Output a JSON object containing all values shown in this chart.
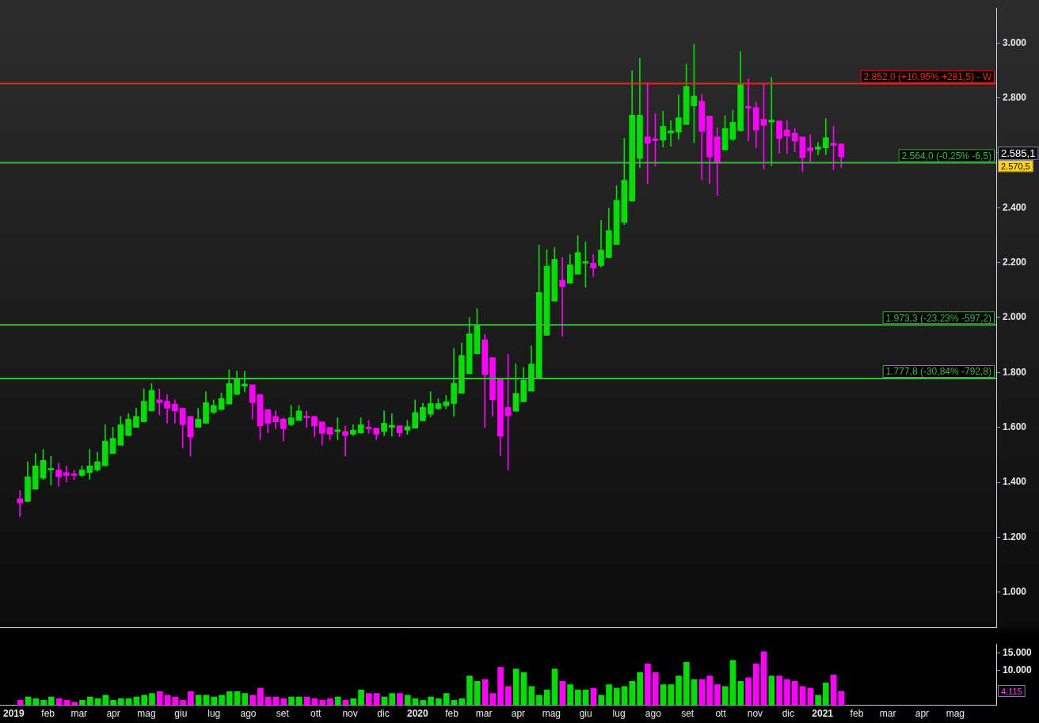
{
  "chart_data": [
    {
      "type": "candlestick",
      "x": [
        "2019-01-07",
        "2019-01-14",
        "2019-01-21",
        "2019-01-28",
        "2019-02-04",
        "2019-02-11",
        "2019-02-18",
        "2019-02-25",
        "2019-03-04",
        "2019-03-11",
        "2019-03-18",
        "2019-03-25",
        "2019-04-01",
        "2019-04-08",
        "2019-04-15",
        "2019-04-22",
        "2019-04-29",
        "2019-05-06",
        "2019-05-13",
        "2019-05-20",
        "2019-05-27",
        "2019-06-03",
        "2019-06-10",
        "2019-06-17",
        "2019-06-24",
        "2019-07-01",
        "2019-07-08",
        "2019-07-15",
        "2019-07-22",
        "2019-07-29",
        "2019-08-05",
        "2019-08-12",
        "2019-08-19",
        "2019-08-26",
        "2019-09-02",
        "2019-09-09",
        "2019-09-16",
        "2019-09-23",
        "2019-09-30",
        "2019-10-07",
        "2019-10-14",
        "2019-10-21",
        "2019-10-28",
        "2019-11-04",
        "2019-11-11",
        "2019-11-18",
        "2019-11-25",
        "2019-12-02",
        "2019-12-09",
        "2019-12-16",
        "2019-12-23",
        "2019-12-30",
        "2020-01-06",
        "2020-01-13",
        "2020-01-20",
        "2020-01-27",
        "2020-02-03",
        "2020-02-10",
        "2020-02-17",
        "2020-02-24",
        "2020-03-02",
        "2020-03-09",
        "2020-03-16",
        "2020-03-23",
        "2020-03-30",
        "2020-04-06",
        "2020-04-13",
        "2020-04-20",
        "2020-04-27",
        "2020-05-04",
        "2020-05-11",
        "2020-05-18",
        "2020-05-25",
        "2020-06-01",
        "2020-06-08",
        "2020-06-15",
        "2020-06-22",
        "2020-06-29",
        "2020-07-06",
        "2020-07-13",
        "2020-07-20",
        "2020-07-27",
        "2020-08-03",
        "2020-08-10",
        "2020-08-17",
        "2020-08-24",
        "2020-08-31",
        "2020-09-07",
        "2020-09-14",
        "2020-09-21",
        "2020-09-28",
        "2020-10-05",
        "2020-10-12",
        "2020-10-19",
        "2020-10-26",
        "2020-11-02",
        "2020-11-09",
        "2020-11-16",
        "2020-11-23",
        "2020-11-30",
        "2020-12-07",
        "2020-12-14",
        "2020-12-21",
        "2020-12-28",
        "2021-01-04",
        "2021-01-11",
        "2021-01-18"
      ],
      "ohlc": [
        [
          1340,
          1370,
          1275,
          1325
        ],
        [
          1330,
          1475,
          1330,
          1420
        ],
        [
          1375,
          1505,
          1375,
          1460
        ],
        [
          1415,
          1520,
          1410,
          1480
        ],
        [
          1445,
          1495,
          1390,
          1448
        ],
        [
          1445,
          1470,
          1385,
          1420
        ],
        [
          1435,
          1460,
          1400,
          1425
        ],
        [
          1430,
          1445,
          1410,
          1425
        ],
        [
          1425,
          1460,
          1420,
          1445
        ],
        [
          1435,
          1520,
          1410,
          1460
        ],
        [
          1445,
          1510,
          1440,
          1475
        ],
        [
          1460,
          1610,
          1460,
          1550
        ],
        [
          1505,
          1600,
          1505,
          1560
        ],
        [
          1535,
          1640,
          1535,
          1610
        ],
        [
          1570,
          1650,
          1570,
          1630
        ],
        [
          1600,
          1670,
          1600,
          1640
        ],
        [
          1620,
          1740,
          1620,
          1695
        ],
        [
          1660,
          1760,
          1660,
          1735
        ],
        [
          1700,
          1740,
          1645,
          1690
        ],
        [
          1695,
          1720,
          1615,
          1670
        ],
        [
          1685,
          1700,
          1615,
          1660
        ],
        [
          1670,
          1670,
          1525,
          1610
        ],
        [
          1640,
          1640,
          1495,
          1565
        ],
        [
          1600,
          1670,
          1600,
          1630
        ],
        [
          1615,
          1730,
          1615,
          1690
        ],
        [
          1655,
          1700,
          1650,
          1680
        ],
        [
          1665,
          1725,
          1665,
          1705
        ],
        [
          1685,
          1810,
          1685,
          1760
        ],
        [
          1720,
          1805,
          1720,
          1775
        ],
        [
          1750,
          1805,
          1730,
          1758
        ],
        [
          1755,
          1755,
          1630,
          1690
        ],
        [
          1720,
          1720,
          1555,
          1605
        ],
        [
          1665,
          1665,
          1580,
          1615
        ],
        [
          1640,
          1660,
          1595,
          1620
        ],
        [
          1630,
          1635,
          1550,
          1595
        ],
        [
          1610,
          1680,
          1605,
          1635
        ],
        [
          1625,
          1680,
          1625,
          1660
        ],
        [
          1640,
          1660,
          1600,
          1635
        ],
        [
          1640,
          1640,
          1565,
          1605
        ],
        [
          1620,
          1620,
          1535,
          1578
        ],
        [
          1600,
          1600,
          1555,
          1575
        ],
        [
          1585,
          1635,
          1555,
          1588
        ],
        [
          1585,
          1605,
          1495,
          1570
        ],
        [
          1575,
          1610,
          1570,
          1590
        ],
        [
          1580,
          1635,
          1578,
          1610
        ],
        [
          1598,
          1625,
          1578,
          1595
        ],
        [
          1597,
          1597,
          1555,
          1575
        ],
        [
          1585,
          1660,
          1570,
          1615
        ],
        [
          1600,
          1650,
          1568,
          1608
        ],
        [
          1606,
          1606,
          1565,
          1580
        ],
        [
          1590,
          1625,
          1574,
          1603
        ],
        [
          1597,
          1700,
          1597,
          1654
        ],
        [
          1624,
          1688,
          1624,
          1673
        ],
        [
          1648,
          1730,
          1638,
          1687
        ],
        [
          1668,
          1704,
          1665,
          1687
        ],
        [
          1679,
          1716,
          1668,
          1693
        ],
        [
          1687,
          1888,
          1641,
          1761
        ],
        [
          1724,
          1907,
          1724,
          1862
        ],
        [
          1795,
          2000,
          1795,
          1941
        ],
        [
          1868,
          2032,
          1868,
          1972
        ],
        [
          1919,
          1938,
          1599,
          1792
        ],
        [
          1854,
          1854,
          1641,
          1701
        ],
        [
          1775,
          1775,
          1497,
          1568
        ],
        [
          1673,
          1866,
          1444,
          1642
        ],
        [
          1659,
          1832,
          1659,
          1724
        ],
        [
          1693,
          1818,
          1693,
          1772
        ],
        [
          1732,
          1897,
          1732,
          1831
        ],
        [
          1782,
          2264,
          1778,
          2091
        ],
        [
          1935,
          2247,
          1935,
          2187
        ],
        [
          2060,
          2255,
          2060,
          2212
        ],
        [
          2136,
          2219,
          1932,
          2113
        ],
        [
          2125,
          2230,
          2125,
          2192
        ],
        [
          2158,
          2298,
          2158,
          2237
        ],
        [
          2198,
          2275,
          2110,
          2200
        ],
        [
          2198,
          2230,
          2149,
          2181
        ],
        [
          2189,
          2354,
          2184,
          2246
        ],
        [
          2218,
          2398,
          2218,
          2317
        ],
        [
          2266,
          2480,
          2266,
          2427
        ],
        [
          2347,
          2652,
          2338,
          2500
        ],
        [
          2424,
          2898,
          2424,
          2737
        ],
        [
          2579,
          2944,
          2547,
          2737
        ],
        [
          2658,
          2856,
          2488,
          2635
        ],
        [
          2647,
          2743,
          2552,
          2645
        ],
        [
          2646,
          2752,
          2621,
          2697
        ],
        [
          2672,
          2717,
          2624,
          2680
        ],
        [
          2675,
          2811,
          2649,
          2728
        ],
        [
          2703,
          2923,
          2703,
          2841
        ],
        [
          2771,
          2995,
          2637,
          2807
        ],
        [
          2788,
          2814,
          2502,
          2678
        ],
        [
          2734,
          2734,
          2488,
          2585
        ],
        [
          2658,
          2692,
          2445,
          2565
        ],
        [
          2610,
          2735,
          2610,
          2689
        ],
        [
          2649,
          2755,
          2644,
          2711
        ],
        [
          2680,
          2969,
          2680,
          2849
        ],
        [
          2765,
          2869,
          2643,
          2763
        ],
        [
          2765,
          2785,
          2617,
          2683
        ],
        [
          2722,
          2850,
          2541,
          2700
        ],
        [
          2712,
          2875,
          2553,
          2719
        ],
        [
          2716,
          2716,
          2598,
          2652
        ],
        [
          2683,
          2717,
          2598,
          2661
        ],
        [
          2672,
          2689,
          2604,
          2643
        ],
        [
          2658,
          2658,
          2533,
          2582
        ],
        [
          2618,
          2666,
          2565,
          2607
        ],
        [
          2613,
          2638,
          2593,
          2621
        ],
        [
          2618,
          2725,
          2593,
          2655
        ],
        [
          2635,
          2697,
          2538,
          2627
        ],
        [
          2632,
          2632,
          2547,
          2585
        ]
      ],
      "colors": [
        "#ff00ff",
        "#00e000",
        "#00e000",
        "#00e000",
        "#00e000",
        "#ff00ff",
        "#ff00ff",
        "#ff00ff",
        "#00e000",
        "#00e000",
        "#00e000",
        "#00e000",
        "#00e000",
        "#00e000",
        "#00e000",
        "#00e000",
        "#00e000",
        "#00e000",
        "#ff00ff",
        "#ff00ff",
        "#ff00ff",
        "#ff00ff",
        "#ff00ff",
        "#00e000",
        "#00e000",
        "#00e000",
        "#00e000",
        "#00e000",
        "#00e000",
        "#00e000",
        "#ff00ff",
        "#ff00ff",
        "#ff00ff",
        "#ff00ff",
        "#ff00ff",
        "#00e000",
        "#00e000",
        "#ff00ff",
        "#ff00ff",
        "#ff00ff",
        "#ff00ff",
        "#00e000",
        "#ff00ff",
        "#00e000",
        "#00e000",
        "#ff00ff",
        "#ff00ff",
        "#00e000",
        "#00e000",
        "#ff00ff",
        "#00e000",
        "#00e000",
        "#00e000",
        "#00e000",
        "#00e000",
        "#00e000",
        "#00e000",
        "#00e000",
        "#00e000",
        "#00e000",
        "#ff00ff",
        "#ff00ff",
        "#ff00ff",
        "#ff00ff",
        "#00e000",
        "#00e000",
        "#00e000",
        "#00e000",
        "#00e000",
        "#00e000",
        "#ff00ff",
        "#00e000",
        "#00e000",
        "#00e000",
        "#ff00ff",
        "#00e000",
        "#00e000",
        "#00e000",
        "#00e000",
        "#00e000",
        "#00e000",
        "#ff00ff",
        "#ff00ff",
        "#00e000",
        "#00e000",
        "#00e000",
        "#00e000",
        "#00e000",
        "#ff00ff",
        "#ff00ff",
        "#ff00ff",
        "#00e000",
        "#00e000",
        "#00e000",
        "#ff00ff",
        "#ff00ff",
        "#ff00ff",
        "#00e000",
        "#ff00ff",
        "#ff00ff",
        "#ff00ff",
        "#ff00ff",
        "#ff00ff",
        "#00e000",
        "#00e000",
        "#ff00ff",
        "#ff00ff"
      ],
      "xlim": [
        "2018-12-20",
        "2021-06-07"
      ],
      "ylim": [
        870,
        3127
      ],
      "yticks": [
        {
          "value": 1000,
          "label": "1.000"
        },
        {
          "value": 1200,
          "label": "1.200"
        },
        {
          "value": 1400,
          "label": "1.400"
        },
        {
          "value": 1600,
          "label": "1.600"
        },
        {
          "value": 1800,
          "label": "1.800"
        },
        {
          "value": 2000,
          "label": "2.000"
        },
        {
          "value": 2200,
          "label": "2.200"
        },
        {
          "value": 2400,
          "label": "2.400"
        },
        {
          "value": 2600,
          "label": null
        },
        {
          "value": 2800,
          "label": "2.800"
        },
        {
          "value": 3000,
          "label": "3.000"
        }
      ],
      "ref_lines": [
        {
          "axis": "y",
          "value": 2852,
          "label": "2.852,0 (+10,95% +281,5) - W",
          "color": "#ff1a1a"
        },
        {
          "axis": "y",
          "value": 2564,
          "label": "2.564,0 (-0,25% -6,5)",
          "color": "#3cb83c"
        },
        {
          "axis": "y",
          "value": 1973.3,
          "label": "1.973,3 (-23,23% -597,2)",
          "color": "#3cb83c"
        },
        {
          "axis": "y",
          "value": 1777.8,
          "label": "1.777,8 (-30,84% -792,8)",
          "color": "#3cb83c"
        }
      ],
      "annotations": [
        "2.585,1",
        "2.570,5"
      ],
      "tick_labels": "y"
    },
    {
      "type": "bar",
      "x": [
        "2019-01-07",
        "2019-01-14",
        "2019-01-21",
        "2019-01-28",
        "2019-02-04",
        "2019-02-11",
        "2019-02-18",
        "2019-02-25",
        "2019-03-04",
        "2019-03-11",
        "2019-03-18",
        "2019-03-25",
        "2019-04-01",
        "2019-04-08",
        "2019-04-15",
        "2019-04-22",
        "2019-04-29",
        "2019-05-06",
        "2019-05-13",
        "2019-05-20",
        "2019-05-27",
        "2019-06-03",
        "2019-06-10",
        "2019-06-17",
        "2019-06-24",
        "2019-07-01",
        "2019-07-08",
        "2019-07-15",
        "2019-07-22",
        "2019-07-29",
        "2019-08-05",
        "2019-08-12",
        "2019-08-19",
        "2019-08-26",
        "2019-09-02",
        "2019-09-09",
        "2019-09-16",
        "2019-09-23",
        "2019-09-30",
        "2019-10-07",
        "2019-10-14",
        "2019-10-21",
        "2019-10-28",
        "2019-11-04",
        "2019-11-11",
        "2019-11-18",
        "2019-11-25",
        "2019-12-02",
        "2019-12-09",
        "2019-12-16",
        "2019-12-23",
        "2019-12-30",
        "2020-01-06",
        "2020-01-13",
        "2020-01-20",
        "2020-01-27",
        "2020-02-03",
        "2020-02-10",
        "2020-02-17",
        "2020-02-24",
        "2020-03-02",
        "2020-03-09",
        "2020-03-16",
        "2020-03-23",
        "2020-03-30",
        "2020-04-06",
        "2020-04-13",
        "2020-04-20",
        "2020-04-27",
        "2020-05-04",
        "2020-05-11",
        "2020-05-18",
        "2020-05-25",
        "2020-06-01",
        "2020-06-08",
        "2020-06-15",
        "2020-06-22",
        "2020-06-29",
        "2020-07-06",
        "2020-07-13",
        "2020-07-20",
        "2020-07-27",
        "2020-08-03",
        "2020-08-10",
        "2020-08-17",
        "2020-08-24",
        "2020-08-31",
        "2020-09-07",
        "2020-09-14",
        "2020-09-21",
        "2020-09-28",
        "2020-10-05",
        "2020-10-12",
        "2020-10-19",
        "2020-10-26",
        "2020-11-02",
        "2020-11-09",
        "2020-11-16",
        "2020-11-23",
        "2020-11-30",
        "2020-12-07",
        "2020-12-14",
        "2020-12-21",
        "2020-12-28",
        "2021-01-04",
        "2021-01-11",
        "2021-01-18"
      ],
      "values": [
        1500,
        2500,
        2000,
        1500,
        2500,
        2000,
        1500,
        1000,
        1500,
        2500,
        2000,
        3000,
        1500,
        2000,
        2000,
        2500,
        3000,
        3500,
        4000,
        3000,
        2500,
        1500,
        4000,
        3000,
        3000,
        2500,
        3000,
        4000,
        4000,
        3500,
        3000,
        5000,
        2500,
        2500,
        2000,
        2500,
        2500,
        2500,
        2000,
        1500,
        2000,
        2500,
        1500,
        2000,
        4500,
        3500,
        3500,
        2500,
        3500,
        3500,
        3000,
        2000,
        1500,
        2500,
        2000,
        3500,
        1500,
        2000,
        8500,
        7000,
        7500,
        3500,
        11000,
        5500,
        10500,
        9500,
        5500,
        3000,
        4500,
        10500,
        7000,
        6000,
        4500,
        4500,
        5000,
        3000,
        6000,
        5000,
        5500,
        7000,
        9500,
        12000,
        9500,
        6000,
        6000,
        8500,
        12500,
        7500,
        7500,
        8500,
        6000,
        5500,
        13000,
        7000,
        8000,
        12000,
        15500,
        8500,
        8500,
        7500,
        7000,
        5500,
        5000,
        3000,
        6500,
        8800,
        4115
      ],
      "colors": [
        "#ff00ff",
        "#00e000",
        "#00e000",
        "#00e000",
        "#00e000",
        "#ff00ff",
        "#ff00ff",
        "#ff00ff",
        "#00e000",
        "#00e000",
        "#00e000",
        "#00e000",
        "#00e000",
        "#00e000",
        "#00e000",
        "#00e000",
        "#00e000",
        "#00e000",
        "#ff00ff",
        "#ff00ff",
        "#ff00ff",
        "#ff00ff",
        "#ff00ff",
        "#00e000",
        "#00e000",
        "#00e000",
        "#00e000",
        "#00e000",
        "#00e000",
        "#00e000",
        "#ff00ff",
        "#ff00ff",
        "#ff00ff",
        "#ff00ff",
        "#ff00ff",
        "#00e000",
        "#00e000",
        "#ff00ff",
        "#ff00ff",
        "#ff00ff",
        "#ff00ff",
        "#00e000",
        "#ff00ff",
        "#00e000",
        "#00e000",
        "#ff00ff",
        "#ff00ff",
        "#00e000",
        "#00e000",
        "#ff00ff",
        "#00e000",
        "#00e000",
        "#00e000",
        "#00e000",
        "#00e000",
        "#00e000",
        "#00e000",
        "#00e000",
        "#00e000",
        "#00e000",
        "#ff00ff",
        "#ff00ff",
        "#ff00ff",
        "#ff00ff",
        "#00e000",
        "#00e000",
        "#00e000",
        "#00e000",
        "#00e000",
        "#00e000",
        "#ff00ff",
        "#00e000",
        "#00e000",
        "#00e000",
        "#ff00ff",
        "#00e000",
        "#00e000",
        "#00e000",
        "#00e000",
        "#00e000",
        "#00e000",
        "#ff00ff",
        "#ff00ff",
        "#00e000",
        "#00e000",
        "#00e000",
        "#00e000",
        "#00e000",
        "#ff00ff",
        "#ff00ff",
        "#ff00ff",
        "#00e000",
        "#00e000",
        "#00e000",
        "#ff00ff",
        "#ff00ff",
        "#ff00ff",
        "#00e000",
        "#ff00ff",
        "#ff00ff",
        "#ff00ff",
        "#ff00ff",
        "#ff00ff",
        "#00e000",
        "#00e000",
        "#ff00ff",
        "#ff00ff"
      ],
      "xlim": [
        "2018-12-20",
        "2021-06-07"
      ],
      "xticks": [
        {
          "value": "2019-01",
          "label": "2019"
        },
        {
          "value": "2019-02",
          "label": "feb"
        },
        {
          "value": "2019-03",
          "label": "mar"
        },
        {
          "value": "2019-04",
          "label": "apr"
        },
        {
          "value": "2019-05",
          "label": "mag"
        },
        {
          "value": "2019-06",
          "label": "giu"
        },
        {
          "value": "2019-07",
          "label": "lug"
        },
        {
          "value": "2019-08",
          "label": "ago"
        },
        {
          "value": "2019-09",
          "label": "set"
        },
        {
          "value": "2019-10",
          "label": "ott"
        },
        {
          "value": "2019-11",
          "label": "nov"
        },
        {
          "value": "2019-12",
          "label": "dic"
        },
        {
          "value": "2020-01",
          "label": "2020"
        },
        {
          "value": "2020-02",
          "label": "feb"
        },
        {
          "value": "2020-03",
          "label": "mar"
        },
        {
          "value": "2020-04",
          "label": "apr"
        },
        {
          "value": "2020-05",
          "label": "mag"
        },
        {
          "value": "2020-06",
          "label": "giu"
        },
        {
          "value": "2020-07",
          "label": "lug"
        },
        {
          "value": "2020-08",
          "label": "ago"
        },
        {
          "value": "2020-09",
          "label": "set"
        },
        {
          "value": "2020-10",
          "label": "ott"
        },
        {
          "value": "2020-11",
          "label": "nov"
        },
        {
          "value": "2020-12",
          "label": "dic"
        },
        {
          "value": "2021-01",
          "label": "2021"
        },
        {
          "value": "2021-02",
          "label": "feb"
        },
        {
          "value": "2021-03",
          "label": "mar"
        },
        {
          "value": "2021-04",
          "label": "apr"
        },
        {
          "value": "2021-05",
          "label": "mag"
        }
      ],
      "ylim": [
        0,
        17600
      ],
      "yticks": [
        {
          "value": 10000,
          "label": "10.000"
        },
        {
          "value": 15000,
          "label": "15.000"
        }
      ],
      "annotations": [
        "4.115"
      ]
    }
  ]
}
